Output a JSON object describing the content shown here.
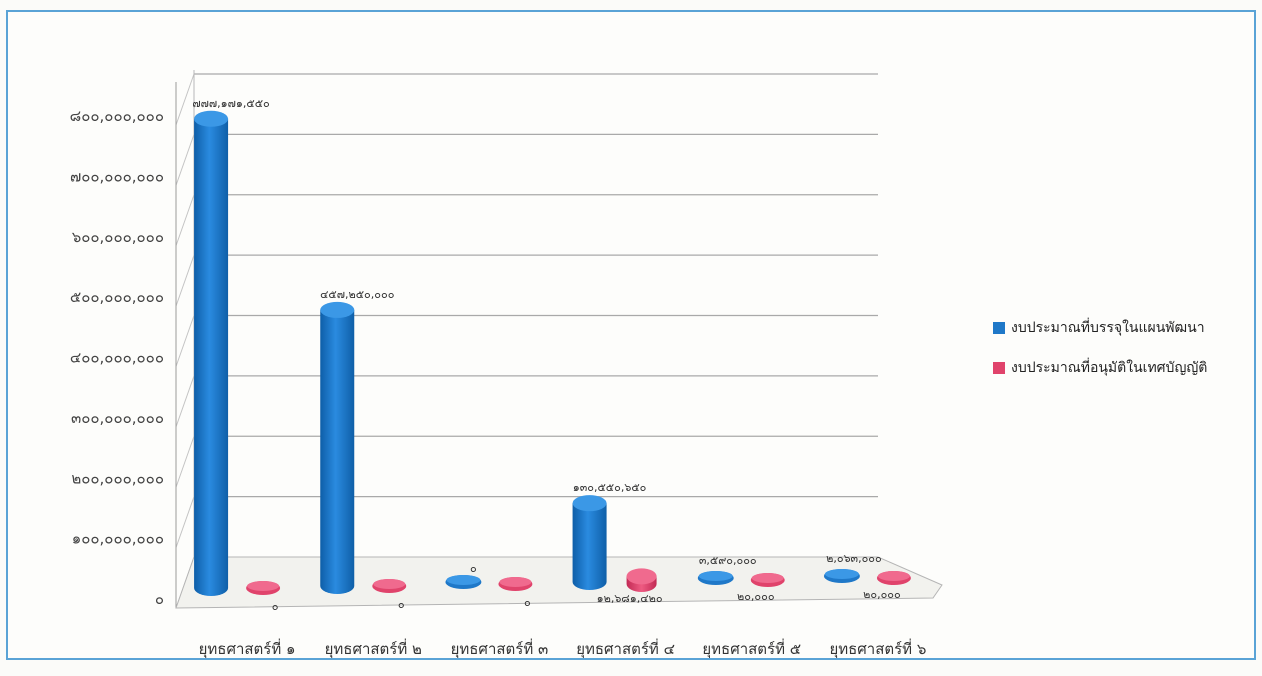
{
  "chart_data": {
    "type": "bar",
    "title": "",
    "xlabel": "",
    "ylabel": "",
    "ylim": [
      0,
      800000000
    ],
    "yticks": [
      {
        "value": 0,
        "label": "๐"
      },
      {
        "value": 100000000,
        "label": "๑๐๐,๐๐๐,๐๐๐"
      },
      {
        "value": 200000000,
        "label": "๒๐๐,๐๐๐,๐๐๐"
      },
      {
        "value": 300000000,
        "label": "๓๐๐,๐๐๐,๐๐๐"
      },
      {
        "value": 400000000,
        "label": "๔๐๐,๐๐๐,๐๐๐"
      },
      {
        "value": 500000000,
        "label": "๕๐๐,๐๐๐,๐๐๐"
      },
      {
        "value": 600000000,
        "label": "๖๐๐,๐๐๐,๐๐๐"
      },
      {
        "value": 700000000,
        "label": "๗๐๐,๐๐๐,๐๐๐"
      },
      {
        "value": 800000000,
        "label": "๘๐๐,๐๐๐,๐๐๐"
      }
    ],
    "categories": [
      "ยุทธศาสตร์ที่ ๑",
      "ยุทธศาสตร์ที่ ๒",
      "ยุทธศาสตร์ที่ ๓",
      "ยุทธศาสตร์ที่ ๔",
      "ยุทธศาสตร์ที่ ๕",
      "ยุทธศาสตร์ที่ ๖"
    ],
    "series": [
      {
        "name": "งบประมาณที่บรรจุในแผนพัฒนา",
        "color": "#1f78c8",
        "values": [
          777171550,
          457250000,
          0,
          130550650,
          3590000,
          2063000
        ],
        "labels": [
          "๗๗๗,๑๗๑,๕๕๐",
          "๔๕๗,๒๕๐,๐๐๐",
          "๐",
          "๑๓๐,๕๕๐,๖๕๐",
          "๓,๕๙๐,๐๐๐",
          "๒,๐๖๓,๐๐๐"
        ]
      },
      {
        "name": "งบประมาณที่อนุมัติในเทศบัญญัติ",
        "color": "#e0436b",
        "values": [
          0,
          0,
          0,
          12681420,
          20000,
          20000
        ],
        "labels": [
          "๐",
          "๐",
          "๐",
          "๑๒,๖๘๑,๔๒๐",
          "๒๐,๐๐๐",
          "๒๐,๐๐๐"
        ]
      }
    ],
    "legend_position": "right",
    "grid": true
  }
}
